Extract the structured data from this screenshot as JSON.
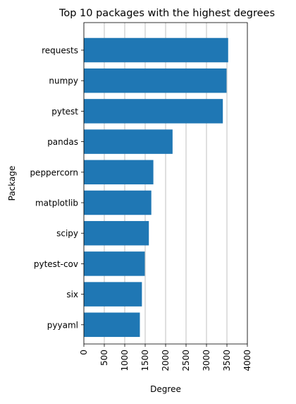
{
  "chart_data": {
    "type": "bar",
    "orientation": "horizontal",
    "title": "Top 10 packages with the highest degrees",
    "xlabel": "Degree",
    "ylabel": "Package",
    "categories": [
      "requests",
      "numpy",
      "pytest",
      "pandas",
      "peppercorn",
      "matplotlib",
      "scipy",
      "pytest-cov",
      "six",
      "pyyaml"
    ],
    "values": [
      3530,
      3490,
      3400,
      2170,
      1700,
      1650,
      1590,
      1490,
      1420,
      1370
    ],
    "xlim": [
      0,
      4000
    ],
    "xticks": [
      "0",
      "500",
      "1000",
      "1500",
      "2000",
      "2500",
      "3000",
      "3500",
      "4000"
    ],
    "grid": "x",
    "bar_color": "#1f77b4",
    "grid_color": "#b0b0b0"
  }
}
